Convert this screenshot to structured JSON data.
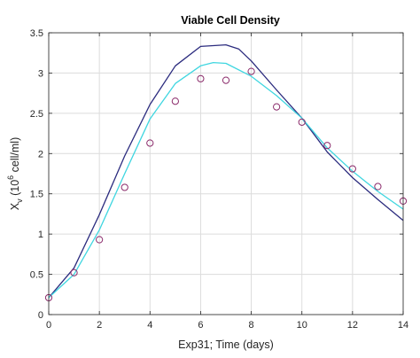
{
  "chart_data": {
    "type": "line",
    "title": "Viable Cell Density",
    "xlabel": "Exp31; Time (days)",
    "ylabel": {
      "base": "X",
      "subscript": "v",
      "open": "(10",
      "superscript": "6",
      "rest": " cell/ml)"
    },
    "xlim": [
      0,
      14
    ],
    "ylim": [
      0,
      3.5
    ],
    "xticks": [
      0,
      2,
      4,
      6,
      8,
      10,
      12,
      14
    ],
    "xtick_labels": [
      "0",
      "2",
      "4",
      "6",
      "8",
      "10",
      "12",
      "14"
    ],
    "yticks": [
      0,
      0.5,
      1,
      1.5,
      2,
      2.5,
      3,
      3.5
    ],
    "ytick_labels": [
      "0",
      "0.5",
      "1",
      "1.5",
      "2",
      "2.5",
      "3",
      "3.5"
    ],
    "grid": true,
    "series": [
      {
        "kind": "line",
        "color": "#2b2b7e",
        "points": [
          [
            0,
            0.21
          ],
          [
            1,
            0.58
          ],
          [
            2,
            1.24
          ],
          [
            3,
            1.97
          ],
          [
            4,
            2.61
          ],
          [
            5,
            3.09
          ],
          [
            6,
            3.33
          ],
          [
            7,
            3.35
          ],
          [
            7.5,
            3.3
          ],
          [
            8,
            3.15
          ],
          [
            9,
            2.79
          ],
          [
            10,
            2.44
          ],
          [
            11,
            2.02
          ],
          [
            12,
            1.7
          ],
          [
            13,
            1.43
          ],
          [
            14,
            1.17
          ]
        ]
      },
      {
        "kind": "line",
        "color": "#3fd6e0",
        "points": [
          [
            0,
            0.21
          ],
          [
            1,
            0.5
          ],
          [
            2,
            1.05
          ],
          [
            3,
            1.75
          ],
          [
            4,
            2.43
          ],
          [
            5,
            2.87
          ],
          [
            6,
            3.09
          ],
          [
            6.5,
            3.13
          ],
          [
            7,
            3.12
          ],
          [
            8,
            2.96
          ],
          [
            9,
            2.72
          ],
          [
            10,
            2.44
          ],
          [
            11,
            2.07
          ],
          [
            12,
            1.78
          ],
          [
            13,
            1.53
          ],
          [
            14,
            1.31
          ]
        ]
      },
      {
        "kind": "scatter",
        "color": "#8a2a6a",
        "points": [
          [
            0,
            0.21
          ],
          [
            1,
            0.52
          ],
          [
            2,
            0.93
          ],
          [
            3,
            1.58
          ],
          [
            4,
            2.13
          ],
          [
            5,
            2.65
          ],
          [
            6,
            2.93
          ],
          [
            7,
            2.91
          ],
          [
            8,
            3.02
          ],
          [
            9,
            2.58
          ],
          [
            10,
            2.39
          ],
          [
            11,
            2.1
          ],
          [
            12,
            1.81
          ],
          [
            13,
            1.59
          ],
          [
            14,
            1.41
          ]
        ]
      }
    ]
  }
}
